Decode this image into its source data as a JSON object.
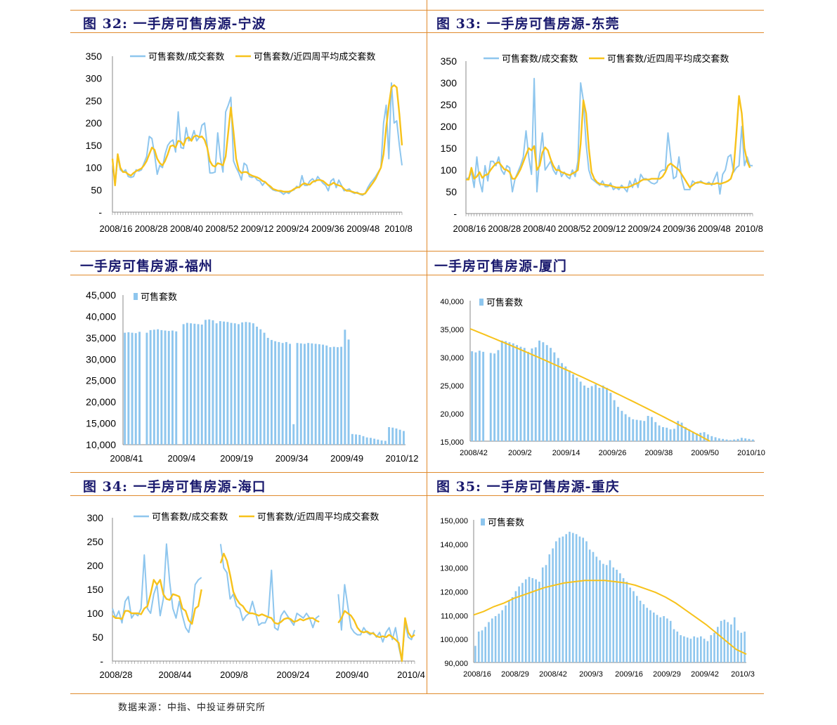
{
  "source": "数据来源：中指、中投证券研究所",
  "colors": {
    "blue": "#8ec6ee",
    "yellow": "#f7c21b",
    "axis": "#888888",
    "title": "#1a1a6e",
    "rule": "#e08a2c"
  },
  "titles": {
    "c32": "图  32:  一手房可售房源-宁波",
    "c33": "图  33:  一手房可售房源-东莞",
    "fz": "一手房可售房源-福州",
    "xm": "一手房可售房源-厦门",
    "c34": "图  34:  一手房可售房源-海口",
    "c35": "图  35:  一手房可售房源-重庆"
  },
  "chart_data": [
    {
      "id": "ningbo",
      "type": "line",
      "title": "一手房可售房源-宁波",
      "legend": [
        "可售套数/成交套数",
        "可售套数/近四周平均成交套数"
      ],
      "y_ticks": [
        "350",
        "300",
        "250",
        "200",
        "150",
        "100",
        "50",
        "-"
      ],
      "ylim": [
        0,
        350
      ],
      "x_ticks": [
        "2008/16",
        "2008/28",
        "2008/40",
        "2008/52",
        "2009/12",
        "2009/24",
        "2009/36",
        "2009/48",
        "2010/8"
      ],
      "series": [
        {
          "name": "可售套数/成交套数",
          "values": [
            120,
            60,
            125,
            95,
            90,
            95,
            80,
            78,
            80,
            95,
            92,
            95,
            110,
            125,
            170,
            165,
            130,
            85,
            105,
            100,
            130,
            150,
            158,
            162,
            135,
            225,
            145,
            143,
            190,
            160,
            165,
            183,
            160,
            168,
            195,
            200,
            150,
            88,
            88,
            90,
            178,
            122,
            90,
            225,
            240,
            258,
            115,
            100,
            88,
            72,
            110,
            105,
            80,
            78,
            80,
            72,
            70,
            60,
            68,
            62,
            55,
            50,
            48,
            48,
            45,
            40,
            45,
            42,
            48,
            50,
            58,
            55,
            82,
            60,
            60,
            70,
            75,
            68,
            80,
            72,
            65,
            60,
            48,
            70,
            75,
            55,
            72,
            60,
            48,
            50,
            52,
            45,
            42,
            45,
            40,
            38,
            42,
            55,
            65,
            72,
            80,
            90,
            100,
            200,
            240,
            120,
            290,
            200,
            205,
            150,
            105
          ]
        },
        {
          "name": "可售套数/近四周平均成交套数",
          "values": [
            120,
            60,
            130,
            100,
            90,
            90,
            85,
            82,
            88,
            92,
            95,
            98,
            105,
            115,
            130,
            145,
            140,
            120,
            110,
            105,
            115,
            130,
            148,
            150,
            145,
            160,
            158,
            150,
            165,
            168,
            160,
            170,
            172,
            168,
            170,
            162,
            145,
            115,
            105,
            102,
            110,
            108,
            105,
            125,
            180,
            235,
            180,
            120,
            95,
            88,
            90,
            90,
            85,
            82,
            80,
            78,
            75,
            70,
            68,
            62,
            58,
            52,
            50,
            48,
            48,
            46,
            46,
            46,
            48,
            52,
            55,
            56,
            62,
            65,
            62,
            62,
            68,
            70,
            72,
            72,
            70,
            65,
            60,
            62,
            66,
            62,
            60,
            58,
            52,
            48,
            48,
            46,
            44,
            43,
            41,
            40,
            42,
            50,
            58,
            66,
            75,
            88,
            100,
            130,
            190,
            240,
            280,
            285,
            280,
            220,
            150
          ]
        }
      ]
    },
    {
      "id": "dongguan",
      "type": "line",
      "title": "一手房可售房源-东莞",
      "legend": [
        "可售套数/成交套数",
        "可售套数/近四周平均成交套数"
      ],
      "y_ticks": [
        "350",
        "300",
        "250",
        "200",
        "150",
        "100",
        "50",
        "-"
      ],
      "ylim": [
        0,
        350
      ],
      "x_ticks": [
        "2008/16",
        "2008/28",
        "2008/40",
        "2008/52",
        "2009/12",
        "2009/24",
        "2009/36",
        "2009/48",
        "2010/8"
      ],
      "series": [
        {
          "name": "可售套数/成交套数",
          "values": [
            80,
            82,
            95,
            60,
            130,
            75,
            50,
            110,
            75,
            120,
            120,
            110,
            130,
            100,
            90,
            110,
            105,
            50,
            80,
            95,
            110,
            130,
            190,
            130,
            90,
            310,
            50,
            130,
            185,
            100,
            110,
            120,
            100,
            90,
            110,
            85,
            95,
            85,
            80,
            100,
            85,
            120,
            300,
            260,
            160,
            100,
            80,
            75,
            70,
            65,
            75,
            62,
            62,
            70,
            55,
            60,
            55,
            65,
            58,
            50,
            75,
            60,
            80,
            60,
            90,
            80,
            80,
            75,
            70,
            68,
            72,
            95,
            100,
            100,
            185,
            130,
            80,
            85,
            130,
            80,
            55,
            55,
            55,
            75,
            70,
            70,
            75,
            70,
            68,
            72,
            65,
            80,
            95,
            45,
            90,
            100,
            130,
            135,
            95,
            105,
            110,
            200,
            110,
            130,
            110,
            110
          ]
        },
        {
          "name": "可售套数/近四周平均成交套数",
          "values": [
            78,
            78,
            105,
            80,
            85,
            95,
            82,
            88,
            90,
            100,
            108,
            115,
            118,
            110,
            102,
            100,
            95,
            80,
            80,
            90,
            102,
            118,
            135,
            150,
            145,
            155,
            100,
            110,
            140,
            152,
            145,
            125,
            110,
            100,
            100,
            95,
            93,
            90,
            88,
            92,
            95,
            100,
            160,
            260,
            230,
            150,
            95,
            80,
            72,
            68,
            67,
            66,
            65,
            64,
            62,
            60,
            60,
            60,
            60,
            60,
            62,
            65,
            68,
            70,
            75,
            78,
            78,
            78,
            80,
            80,
            80,
            80,
            85,
            95,
            110,
            115,
            110,
            105,
            100,
            90,
            80,
            70,
            60,
            65,
            70,
            72,
            72,
            70,
            68,
            68,
            68,
            68,
            70,
            68,
            70,
            72,
            75,
            80,
            100,
            180,
            270,
            230,
            150,
            120,
            105
          ]
        }
      ]
    },
    {
      "id": "fuzhou",
      "type": "bar",
      "title": "一手房可售房源-福州",
      "legend": [
        "可售套数"
      ],
      "y_ticks": [
        "45,000",
        "40,000",
        "35,000",
        "30,000",
        "25,000",
        "20,000",
        "15,000",
        "10,000"
      ],
      "ylim": [
        10000,
        45000
      ],
      "x_ticks": [
        "2008/41",
        "2009/4",
        "2009/19",
        "2009/34",
        "2009/49",
        "2010/12"
      ],
      "values": [
        36200,
        36300,
        36200,
        36100,
        36400,
        null,
        36200,
        36800,
        36900,
        37000,
        36800,
        36700,
        36600,
        36700,
        36500,
        null,
        38200,
        38500,
        38400,
        38300,
        38200,
        38100,
        39200,
        39300,
        39100,
        38400,
        38900,
        38800,
        38700,
        38500,
        38400,
        38200,
        38600,
        38700,
        38600,
        38400,
        37600,
        37000,
        36200,
        35000,
        34500,
        34200,
        34000,
        33800,
        34000,
        33600,
        14800,
        33800,
        33700,
        33600,
        33800,
        33700,
        33600,
        33500,
        33400,
        33200,
        32800,
        32900,
        32800,
        32900,
        36900,
        34600,
        12500,
        12400,
        12300,
        12000,
        11700,
        11600,
        11400,
        11200,
        11000,
        10900,
        14100,
        14000,
        13800,
        13500,
        13200
      ]
    },
    {
      "id": "xiamen",
      "type": "bar",
      "title": "一手房可售房源-厦门",
      "legend": [
        "可售套数"
      ],
      "y_ticks": [
        "40,000",
        "35,000",
        "30,000",
        "25,000",
        "20,000",
        "15,000"
      ],
      "ylim": [
        15000,
        40000
      ],
      "x_ticks": [
        "2008/42",
        "2009/2",
        "2009/14",
        "2009/26",
        "2009/38",
        "2009/50",
        "2010/10"
      ],
      "values": [
        31000,
        30800,
        31100,
        30900,
        null,
        30700,
        30600,
        31200,
        32900,
        32800,
        32600,
        32400,
        32100,
        31800,
        31600,
        30900,
        31500,
        31700,
        32900,
        32600,
        32100,
        31600,
        30800,
        29800,
        28900,
        28300,
        27600,
        26900,
        26300,
        25600,
        24900,
        24500,
        24800,
        25100,
        24500,
        24900,
        24500,
        23600,
        22300,
        21100,
        20400,
        19800,
        19300,
        18900,
        18800,
        18700,
        18600,
        19500,
        19300,
        18400,
        17800,
        17500,
        17400,
        17100,
        17200,
        18600,
        18300,
        17500,
        17100,
        16700,
        16400,
        16500,
        16600,
        16200,
        15900,
        15700,
        15500,
        15400,
        15300,
        15200,
        15300,
        15400,
        15600,
        15500,
        15400,
        15300
      ],
      "trend_start": 35000,
      "trend_end": 15000
    },
    {
      "id": "haikou",
      "type": "line",
      "title": "一手房可售房源-海口",
      "legend": [
        "可售套数/成交套数",
        "可售套数/近四周平均成交套数"
      ],
      "y_ticks": [
        "300",
        "250",
        "200",
        "150",
        "100",
        "50",
        "-"
      ],
      "ylim": [
        0,
        300
      ],
      "x_ticks": [
        "2008/28",
        "2008/44",
        "2009/8",
        "2009/24",
        "2009/40",
        "2010/4"
      ],
      "series": [
        {
          "name": "可售套数/成交套数",
          "values": [
            110,
            90,
            105,
            80,
            125,
            135,
            90,
            100,
            95,
            110,
            222,
            110,
            100,
            140,
            160,
            95,
            130,
            245,
            165,
            110,
            90,
            125,
            95,
            70,
            60,
            95,
            160,
            170,
            175,
            null,
            null,
            null,
            null,
            null,
            245,
            195,
            185,
            130,
            140,
            115,
            110,
            85,
            95,
            100,
            125,
            100,
            75,
            80,
            80,
            95,
            190,
            70,
            65,
            95,
            105,
            95,
            85,
            75,
            100,
            95,
            90,
            100,
            90,
            70,
            90,
            95,
            null,
            null,
            null,
            null,
            null,
            140,
            65,
            160,
            115,
            70,
            60,
            55,
            55,
            70,
            60,
            55,
            60,
            50,
            60,
            40,
            60,
            70,
            45,
            70,
            30,
            0,
            80,
            50,
            45,
            65
          ]
        },
        {
          "name": "可售套数/近四周平均成交套数",
          "values": [
            95,
            90,
            90,
            88,
            105,
            105,
            100,
            100,
            100,
            98,
            110,
            115,
            140,
            170,
            160,
            170,
            140,
            130,
            128,
            140,
            138,
            135,
            110,
            105,
            85,
            78,
            110,
            115,
            150,
            null,
            null,
            null,
            null,
            null,
            205,
            225,
            210,
            180,
            145,
            130,
            120,
            115,
            105,
            100,
            100,
            98,
            95,
            98,
            95,
            92,
            90,
            80,
            78,
            82,
            88,
            90,
            88,
            82,
            84,
            88,
            85,
            88,
            90,
            90,
            85,
            82,
            null,
            null,
            null,
            null,
            null,
            80,
            90,
            105,
            100,
            95,
            85,
            70,
            62,
            60,
            62,
            58,
            58,
            52,
            50,
            52,
            50,
            55,
            50,
            45,
            38,
            0,
            90,
            60,
            50,
            55
          ]
        }
      ]
    },
    {
      "id": "chongqing",
      "type": "bar",
      "title": "一手房可售房源-重庆",
      "legend": [
        "可售套数"
      ],
      "y_ticks": [
        "150,000",
        "140,000",
        "130,000",
        "120,000",
        "110,000",
        "100,000",
        "90,000"
      ],
      "ylim": [
        90000,
        150000
      ],
      "x_ticks": [
        "2008/16",
        "2008/29",
        "2008/42",
        "2009/3",
        "2009/16",
        "2009/29",
        "2009/42",
        "2010/3"
      ],
      "values": [
        97000,
        103000,
        103500,
        105000,
        107000,
        108500,
        109500,
        110500,
        112000,
        114000,
        116000,
        117500,
        120000,
        122000,
        123500,
        125000,
        126000,
        125500,
        125000,
        124000,
        130000,
        131000,
        135500,
        138000,
        141000,
        142500,
        143000,
        144000,
        145000,
        144500,
        144000,
        143000,
        142500,
        141000,
        137500,
        136500,
        134500,
        133000,
        131500,
        131000,
        133000,
        130000,
        129000,
        127500,
        125500,
        124000,
        121500,
        120000,
        118000,
        116000,
        114500,
        113000,
        112000,
        111000,
        110000,
        109000,
        109500,
        108500,
        107500,
        104000,
        103000,
        101500,
        101000,
        100500,
        100000,
        101000,
        100500,
        101000,
        100000,
        99000,
        101500,
        102500,
        105000,
        107500,
        108000,
        107000,
        106000,
        109000,
        103500,
        102500,
        103000
      ],
      "trend": [
        110000,
        111500,
        113500,
        115000,
        117000,
        118500,
        120000,
        121500,
        122500,
        123500,
        124000,
        124500,
        124500,
        124500,
        124000,
        123500,
        122500,
        121000,
        119500,
        117500,
        115000,
        112000,
        109000,
        106000,
        102500,
        99000,
        95500,
        93500
      ]
    }
  ]
}
